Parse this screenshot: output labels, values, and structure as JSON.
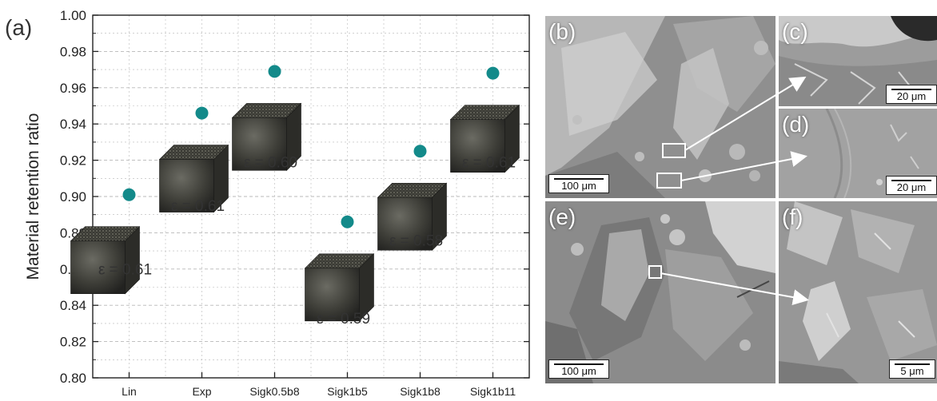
{
  "panel_a": {
    "label": "(a)"
  },
  "chart_data": {
    "type": "scatter",
    "title": "",
    "xlabel": "",
    "ylabel": "Material retention ratio",
    "categories": [
      "Lin",
      "Exp",
      "Sigk0.5b8",
      "Sigk1b5",
      "Sigk1b8",
      "Sigk1b11"
    ],
    "values": [
      0.901,
      0.946,
      0.969,
      0.886,
      0.925,
      0.968
    ],
    "ylim": [
      0.8,
      1.0
    ],
    "yticks": [
      "0.80",
      "0.82",
      "0.84",
      "0.86",
      "0.88",
      "0.90",
      "0.92",
      "0.94",
      "0.96",
      "0.98",
      "1.00"
    ],
    "grid": true,
    "marker_color": "#138a8a",
    "annotations": [
      {
        "category": "Lin",
        "text": "ε = 0.61",
        "y": 0.857
      },
      {
        "category": "Exp",
        "text": "ε = 0.61",
        "y": 0.892
      },
      {
        "category": "Sigk0.5b8",
        "text": "ε = 0.60",
        "y": 0.916
      },
      {
        "category": "Sigk1b5",
        "text": "ε = 0.59",
        "y": 0.83
      },
      {
        "category": "Sigk1b8",
        "text": "ε = 0.58",
        "y": 0.873
      },
      {
        "category": "Sigk1b11",
        "text": "ε = 0.61",
        "y": 0.916
      }
    ]
  },
  "sem_panels": [
    {
      "label": "(b)",
      "scalebar": "100 μm"
    },
    {
      "label": "(c)",
      "scalebar": "20 μm"
    },
    {
      "label": "(d)",
      "scalebar": "20 μm"
    },
    {
      "label": "(e)",
      "scalebar": "100 μm"
    },
    {
      "label": "(f)",
      "scalebar": "5 μm"
    }
  ],
  "colors": {
    "marker": "#138a8a",
    "grid": "#b8b8b8",
    "sem_base": "#8d8d8d"
  }
}
